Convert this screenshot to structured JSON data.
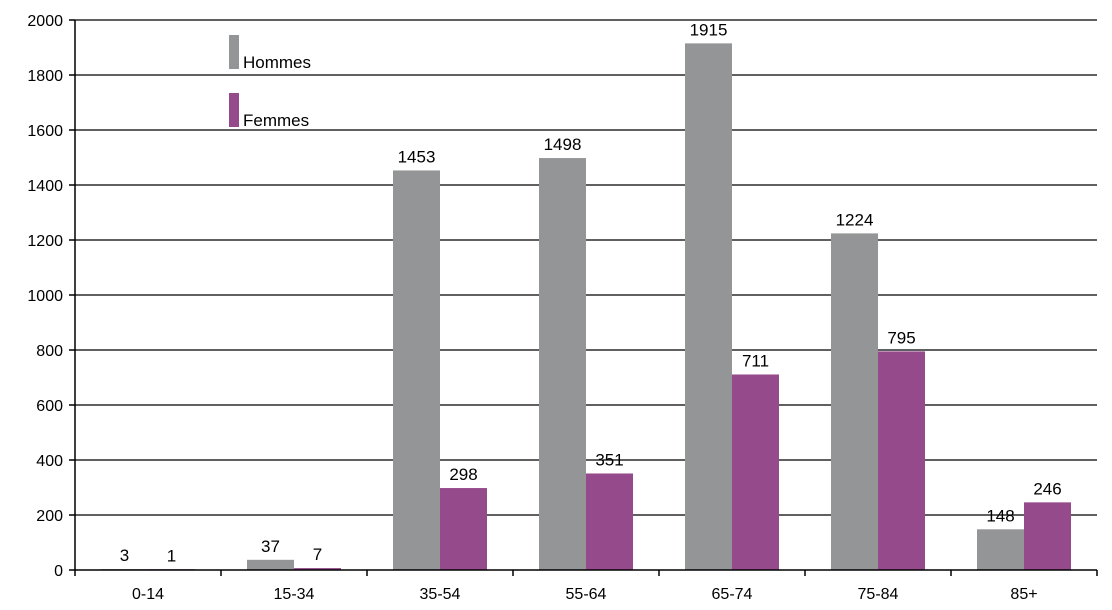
{
  "chart_data": {
    "type": "bar",
    "categories": [
      "0-14",
      "15-34",
      "35-54",
      "55-64",
      "65-74",
      "75-84",
      "85+"
    ],
    "series": [
      {
        "name": "Hommes",
        "color": "#939597",
        "values": [
          3,
          37,
          1453,
          1498,
          1915,
          1224,
          148
        ]
      },
      {
        "name": "Femmes",
        "color": "#954A8C",
        "values": [
          1,
          7,
          298,
          351,
          711,
          795,
          246
        ]
      }
    ],
    "ylim": [
      0,
      2000
    ],
    "yticks": [
      0,
      200,
      400,
      600,
      800,
      1000,
      1200,
      1400,
      1600,
      1800,
      2000
    ],
    "grid": true,
    "legend_position": "top-left",
    "title": "",
    "xlabel": "",
    "ylabel": ""
  }
}
